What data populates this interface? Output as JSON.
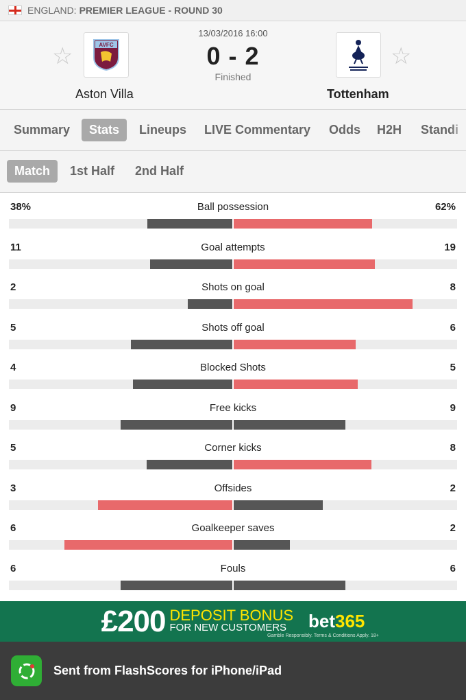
{
  "league": {
    "country": "ENGLAND:",
    "competition": "PREMIER LEAGUE - ROUND 30",
    "flag_icon": "england-flag"
  },
  "match": {
    "datetime": "13/03/2016 16:00",
    "score": "0 - 2",
    "status": "Finished",
    "home": {
      "name": "Aston Villa",
      "badge_text": "AVFC"
    },
    "away": {
      "name": "Tottenham"
    }
  },
  "tabs": [
    "Summary",
    "Stats",
    "Lineups",
    "LIVE Commentary",
    "Odds",
    "H2H",
    "Standi"
  ],
  "active_tab": "Stats",
  "subtabs": [
    "Match",
    "1st Half",
    "2nd Half"
  ],
  "active_subtab": "Match",
  "colors": {
    "leader": "#e8696b",
    "trailer": "#565656",
    "track": "#ececec"
  },
  "stats": [
    {
      "label": "Ball possession",
      "home": "38%",
      "away": "62%",
      "home_val": 38,
      "away_val": 62
    },
    {
      "label": "Goal attempts",
      "home": "11",
      "away": "19",
      "home_val": 11,
      "away_val": 19
    },
    {
      "label": "Shots on goal",
      "home": "2",
      "away": "8",
      "home_val": 2,
      "away_val": 8
    },
    {
      "label": "Shots off goal",
      "home": "5",
      "away": "6",
      "home_val": 5,
      "away_val": 6
    },
    {
      "label": "Blocked Shots",
      "home": "4",
      "away": "5",
      "home_val": 4,
      "away_val": 5
    },
    {
      "label": "Free kicks",
      "home": "9",
      "away": "9",
      "home_val": 9,
      "away_val": 9
    },
    {
      "label": "Corner kicks",
      "home": "5",
      "away": "8",
      "home_val": 5,
      "away_val": 8
    },
    {
      "label": "Offsides",
      "home": "3",
      "away": "2",
      "home_val": 3,
      "away_val": 2
    },
    {
      "label": "Goalkeeper saves",
      "home": "6",
      "away": "2",
      "home_val": 6,
      "away_val": 2
    },
    {
      "label": "Fouls",
      "home": "6",
      "away": "6",
      "home_val": 6,
      "away_val": 6
    }
  ],
  "ad": {
    "amount": "£200",
    "line1": "DEPOSIT BONUS",
    "line2": "FOR NEW CUSTOMERS",
    "brand": "bet",
    "brand_suffix": "365",
    "fine_print": "Gamble Responsibly. Terms & Conditions Apply. 18+"
  },
  "footer": {
    "text": "Sent from FlashScores for iPhone/iPad",
    "icon": "flashscore-app-icon"
  }
}
